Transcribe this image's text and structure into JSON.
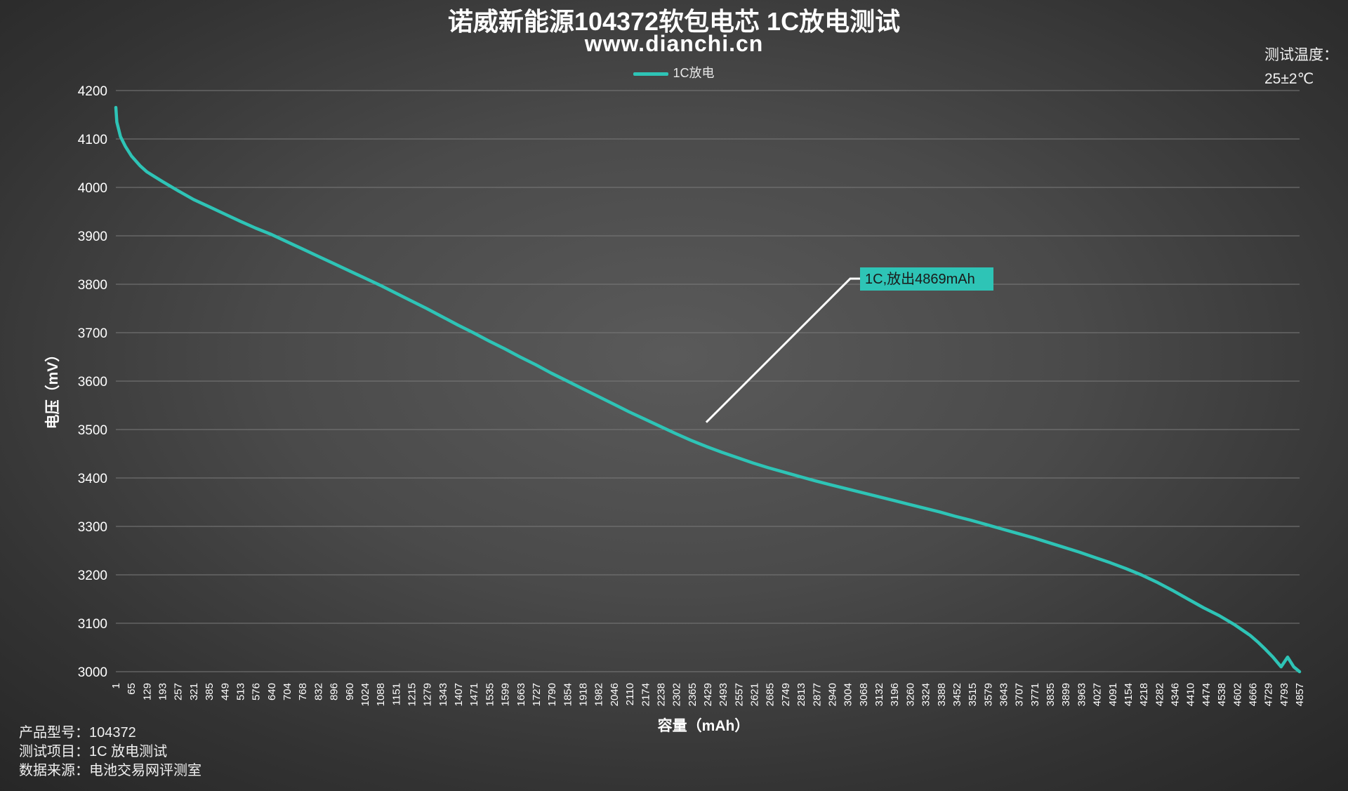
{
  "chart_data": {
    "type": "line",
    "title": "诺威新能源104372软包电芯 1C放电测试",
    "subtitle": "www.dianchi.cn",
    "xlabel": "容量（mAh）",
    "ylabel": "电压（mV）",
    "ylim": [
      3000,
      4200
    ],
    "yticks": [
      3000,
      3100,
      3200,
      3300,
      3400,
      3500,
      3600,
      3700,
      3800,
      3900,
      4000,
      4100,
      4200
    ],
    "xlim": [
      1,
      4869
    ],
    "xtick_labels": [
      "1",
      "65",
      "129",
      "193",
      "257",
      "321",
      "385",
      "449",
      "513",
      "576",
      "640",
      "704",
      "768",
      "832",
      "896",
      "960",
      "1024",
      "1088",
      "1151",
      "1215",
      "1279",
      "1343",
      "1407",
      "1471",
      "1535",
      "1599",
      "1663",
      "1727",
      "1790",
      "1854",
      "1918",
      "1982",
      "2046",
      "2110",
      "2174",
      "2238",
      "2302",
      "2365",
      "2429",
      "2493",
      "2557",
      "2621",
      "2685",
      "2749",
      "2813",
      "2877",
      "2940",
      "3004",
      "3068",
      "3132",
      "3196",
      "3260",
      "3324",
      "3388",
      "3452",
      "3515",
      "3579",
      "3643",
      "3707",
      "3771",
      "3835",
      "3899",
      "3963",
      "4027",
      "4091",
      "4154",
      "4218",
      "4282",
      "4346",
      "4410",
      "4474",
      "4538",
      "4602",
      "4666",
      "4729",
      "4793",
      "4857"
    ],
    "grid": true,
    "legend_position": "top",
    "series": [
      {
        "name": "1C放电",
        "color": "#2ec4b6",
        "x": [
          1,
          5,
          20,
          40,
          65,
          100,
          129,
          161,
          193,
          257,
          321,
          385,
          449,
          513,
          576,
          640,
          704,
          768,
          832,
          896,
          960,
          1024,
          1088,
          1151,
          1215,
          1279,
          1343,
          1407,
          1471,
          1535,
          1599,
          1663,
          1727,
          1790,
          1854,
          1918,
          1982,
          2046,
          2110,
          2174,
          2238,
          2302,
          2365,
          2429,
          2493,
          2557,
          2621,
          2685,
          2749,
          2813,
          2877,
          2940,
          3004,
          3068,
          3132,
          3196,
          3260,
          3324,
          3388,
          3452,
          3515,
          3579,
          3643,
          3707,
          3771,
          3835,
          3899,
          3963,
          4027,
          4091,
          4154,
          4218,
          4282,
          4346,
          4410,
          4474,
          4538,
          4602,
          4666,
          4700,
          4729,
          4760,
          4793,
          4820,
          4845,
          4857,
          4869
        ],
        "y": [
          4165,
          4135,
          4105,
          4085,
          4065,
          4045,
          4032,
          4022,
          4012,
          3993,
          3975,
          3960,
          3945,
          3930,
          3916,
          3903,
          3888,
          3873,
          3858,
          3843,
          3828,
          3813,
          3798,
          3782,
          3766,
          3750,
          3733,
          3716,
          3700,
          3683,
          3667,
          3650,
          3634,
          3617,
          3601,
          3585,
          3569,
          3553,
          3537,
          3522,
          3507,
          3492,
          3478,
          3465,
          3453,
          3442,
          3431,
          3421,
          3412,
          3403,
          3394,
          3386,
          3378,
          3370,
          3362,
          3354,
          3346,
          3338,
          3330,
          3321,
          3313,
          3304,
          3295,
          3286,
          3277,
          3267,
          3257,
          3247,
          3236,
          3225,
          3213,
          3200,
          3185,
          3168,
          3150,
          3132,
          3116,
          3097,
          3075,
          3060,
          3046,
          3030,
          3010,
          3030,
          3010,
          3005,
          3000
        ]
      }
    ],
    "annotation": {
      "text": "1C,放出4869mAh",
      "anchor_x": 2429,
      "anchor_y": 3515
    }
  },
  "header": {
    "title": "诺威新能源104372软包电芯 1C放电测试",
    "subtitle": "www.dianchi.cn",
    "legend_label": "1C放电"
  },
  "temperature": {
    "line1": "测试温度：",
    "line2": "25±2℃"
  },
  "info": {
    "model": "产品型号：104372",
    "item": "测试项目：1C 放电测试",
    "source": "数据来源：电池交易网评测室"
  },
  "colors": {
    "series": "#2ec4b6",
    "grid": "#7a7a7a",
    "leader": "#ffffff"
  }
}
